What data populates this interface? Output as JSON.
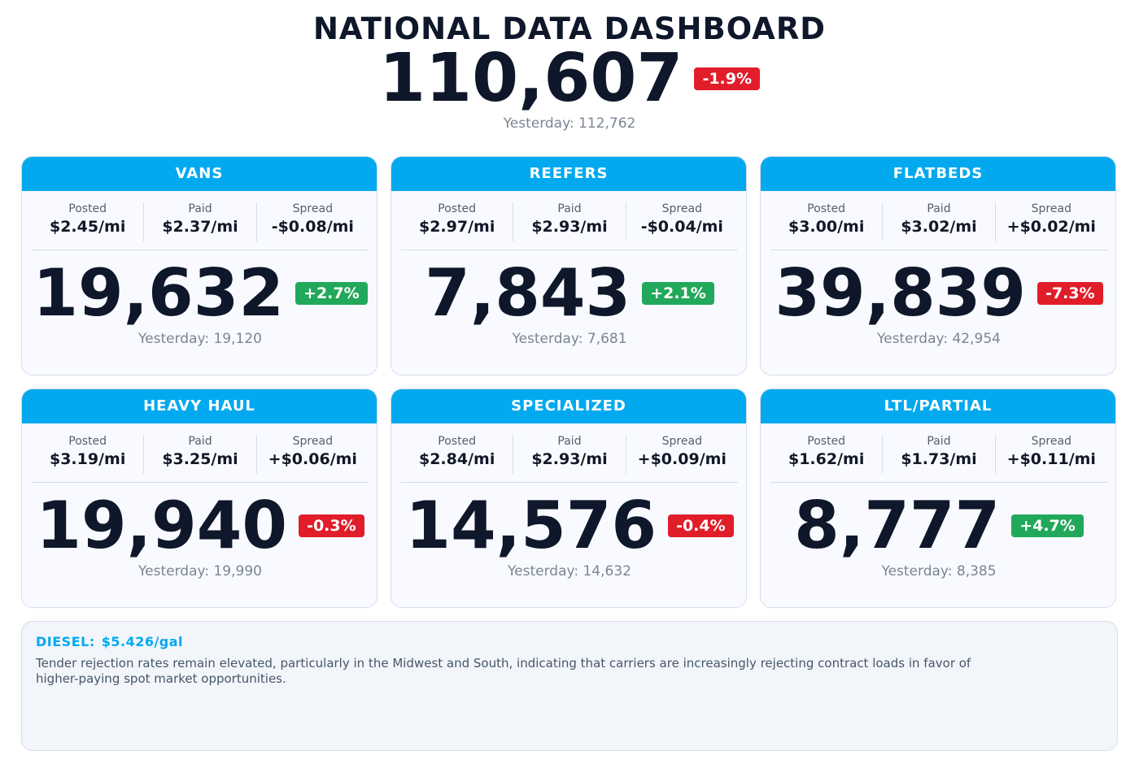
{
  "header": {
    "title": "NATIONAL DATA DASHBOARD",
    "total": "110,607",
    "change": "-1.9%",
    "yesterday": "Yesterday: 112,762"
  },
  "labels": {
    "posted": "Posted",
    "paid": "Paid",
    "spread": "Spread"
  },
  "cards": [
    {
      "title": "VANS",
      "posted": "$2.45/mi",
      "paid": "$2.37/mi",
      "spread": "-$0.08/mi",
      "count": "19,632",
      "change": "+2.7%",
      "yesterday": "Yesterday: 19,120"
    },
    {
      "title": "REEFERS",
      "posted": "$2.97/mi",
      "paid": "$2.93/mi",
      "spread": "-$0.04/mi",
      "count": "7,843",
      "change": "+2.1%",
      "yesterday": "Yesterday: 7,681"
    },
    {
      "title": "FLATBEDS",
      "posted": "$3.00/mi",
      "paid": "$3.02/mi",
      "spread": "+$0.02/mi",
      "count": "39,839",
      "change": "-7.3%",
      "yesterday": "Yesterday: 42,954"
    },
    {
      "title": "HEAVY HAUL",
      "posted": "$3.19/mi",
      "paid": "$3.25/mi",
      "spread": "+$0.06/mi",
      "count": "19,940",
      "change": "-0.3%",
      "yesterday": "Yesterday: 19,990"
    },
    {
      "title": "SPECIALIZED",
      "posted": "$2.84/mi",
      "paid": "$2.93/mi",
      "spread": "+$0.09/mi",
      "count": "14,576",
      "change": "-0.4%",
      "yesterday": "Yesterday: 14,632"
    },
    {
      "title": "LTL/PARTIAL",
      "posted": "$1.62/mi",
      "paid": "$1.73/mi",
      "spread": "+$0.11/mi",
      "count": "8,777",
      "change": "+4.7%",
      "yesterday": "Yesterday: 8,385"
    }
  ],
  "footer": {
    "diesel_label": "DIESEL:",
    "diesel_value": "$5.426/gal",
    "note": "Tender rejection rates remain elevated, particularly in the Midwest and South, indicating that carriers are increasingly rejecting contract loads in favor of higher-paying spot market opportunities."
  },
  "colors": {
    "accent": "#03a9ef",
    "up": "#22a85a",
    "down": "#e11d2a"
  }
}
